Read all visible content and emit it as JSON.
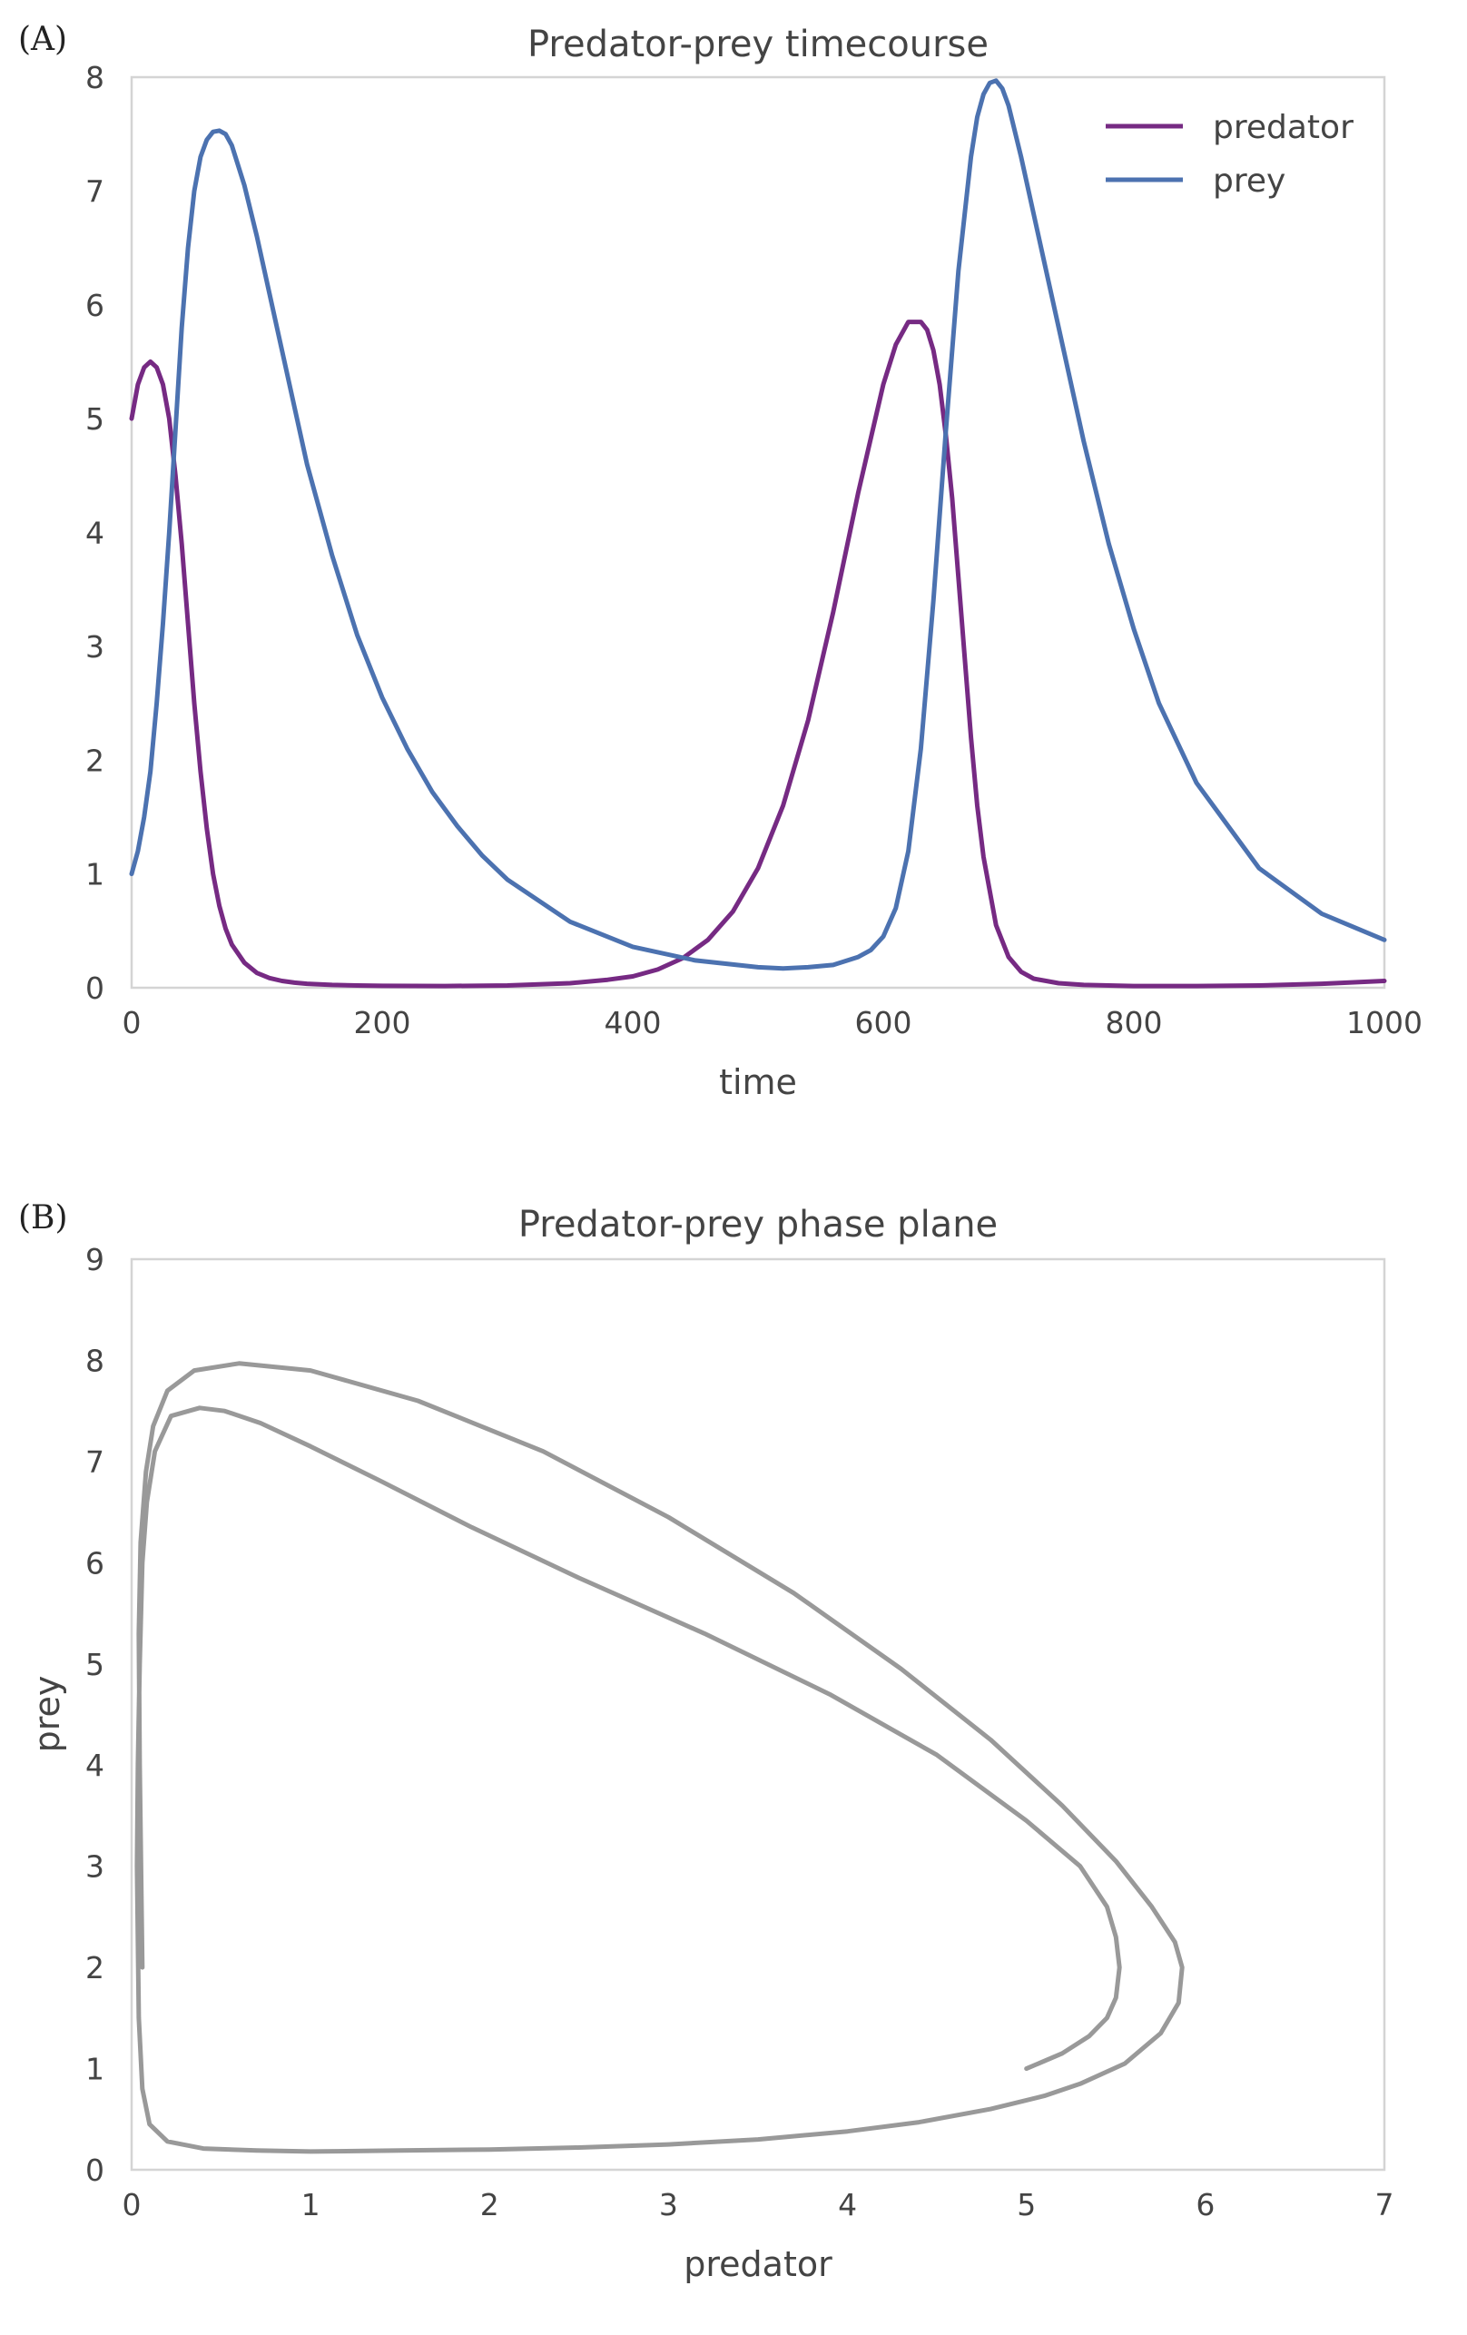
{
  "panels": [
    {
      "label": "(A)"
    },
    {
      "label": "(B)"
    }
  ],
  "chart_data": [
    {
      "type": "line",
      "title": "Predator-prey timecourse",
      "xlabel": "time",
      "ylabel": "",
      "xlim": [
        0,
        1000
      ],
      "ylim": [
        0,
        8
      ],
      "xticks": [
        0,
        200,
        400,
        600,
        800,
        1000
      ],
      "yticks": [
        0,
        1,
        2,
        3,
        4,
        5,
        6,
        7,
        8
      ],
      "grid": false,
      "legend": "top-right",
      "series": [
        {
          "name": "predator",
          "color": "#762a83",
          "x": [
            0,
            5,
            10,
            15,
            20,
            25,
            30,
            35,
            40,
            45,
            50,
            55,
            60,
            65,
            70,
            75,
            80,
            90,
            100,
            110,
            120,
            130,
            140,
            160,
            180,
            200,
            250,
            300,
            350,
            380,
            400,
            420,
            440,
            460,
            480,
            500,
            520,
            540,
            560,
            580,
            600,
            610,
            620,
            630,
            635,
            640,
            645,
            650,
            655,
            660,
            665,
            670,
            675,
            680,
            690,
            700,
            710,
            720,
            740,
            760,
            800,
            850,
            900,
            950,
            1000
          ],
          "y": [
            5.0,
            5.3,
            5.45,
            5.5,
            5.45,
            5.3,
            5.0,
            4.5,
            3.9,
            3.2,
            2.5,
            1.9,
            1.4,
            1.0,
            0.72,
            0.52,
            0.38,
            0.22,
            0.13,
            0.085,
            0.06,
            0.045,
            0.035,
            0.025,
            0.02,
            0.017,
            0.015,
            0.02,
            0.04,
            0.07,
            0.1,
            0.16,
            0.26,
            0.42,
            0.67,
            1.05,
            1.6,
            2.35,
            3.3,
            4.35,
            5.3,
            5.65,
            5.85,
            5.85,
            5.78,
            5.6,
            5.3,
            4.85,
            4.3,
            3.6,
            2.9,
            2.2,
            1.6,
            1.15,
            0.55,
            0.27,
            0.14,
            0.08,
            0.04,
            0.025,
            0.015,
            0.015,
            0.02,
            0.035,
            0.06
          ]
        },
        {
          "name": "prey",
          "color": "#4c72b0",
          "x": [
            0,
            5,
            10,
            15,
            20,
            25,
            30,
            35,
            40,
            45,
            50,
            55,
            60,
            65,
            70,
            75,
            80,
            90,
            100,
            110,
            120,
            140,
            160,
            180,
            200,
            220,
            240,
            260,
            280,
            300,
            350,
            400,
            450,
            500,
            520,
            540,
            560,
            580,
            590,
            600,
            610,
            620,
            630,
            640,
            650,
            660,
            670,
            675,
            680,
            685,
            690,
            695,
            700,
            710,
            720,
            740,
            760,
            780,
            800,
            820,
            850,
            900,
            950,
            1000
          ],
          "y": [
            1.0,
            1.2,
            1.5,
            1.9,
            2.5,
            3.2,
            4.0,
            4.9,
            5.8,
            6.5,
            7.0,
            7.3,
            7.45,
            7.52,
            7.53,
            7.5,
            7.4,
            7.05,
            6.6,
            6.1,
            5.6,
            4.6,
            3.8,
            3.1,
            2.55,
            2.1,
            1.72,
            1.42,
            1.16,
            0.95,
            0.58,
            0.36,
            0.24,
            0.18,
            0.17,
            0.18,
            0.2,
            0.27,
            0.33,
            0.45,
            0.7,
            1.2,
            2.1,
            3.4,
            4.9,
            6.3,
            7.3,
            7.65,
            7.85,
            7.95,
            7.97,
            7.9,
            7.75,
            7.3,
            6.8,
            5.8,
            4.8,
            3.9,
            3.15,
            2.5,
            1.8,
            1.05,
            0.65,
            0.42
          ]
        }
      ]
    },
    {
      "type": "line",
      "title": "Predator-prey phase plane",
      "xlabel": "predator",
      "ylabel": "prey",
      "xlim": [
        0,
        7
      ],
      "ylim": [
        0,
        9
      ],
      "xticks": [
        0,
        1,
        2,
        3,
        4,
        5,
        6,
        7
      ],
      "yticks": [
        0,
        1,
        2,
        3,
        4,
        5,
        6,
        7,
        8,
        9
      ],
      "grid": false,
      "legend": "none",
      "series": [
        {
          "color": "#999999",
          "x": [
            5.0,
            5.2,
            5.35,
            5.45,
            5.5,
            5.52,
            5.5,
            5.45,
            5.3,
            5.0,
            4.5,
            3.9,
            3.2,
            2.5,
            1.9,
            1.4,
            1.0,
            0.72,
            0.52,
            0.38,
            0.22,
            0.13,
            0.085,
            0.06,
            0.045,
            0.035,
            0.03,
            0.04,
            0.06,
            0.1,
            0.2,
            0.4,
            0.7,
            1.0,
            1.5,
            2.0,
            2.5,
            3.0,
            3.5,
            4.0,
            4.4,
            4.8,
            5.1,
            5.3,
            5.55,
            5.75,
            5.85,
            5.87,
            5.83,
            5.7,
            5.5,
            5.2,
            4.8,
            4.3,
            3.7,
            3.0,
            2.3,
            1.6,
            1.0,
            0.6,
            0.35,
            0.2,
            0.12,
            0.08,
            0.05,
            0.04,
            0.045,
            0.06
          ],
          "y": [
            1.0,
            1.15,
            1.32,
            1.5,
            1.7,
            2.0,
            2.3,
            2.6,
            3.0,
            3.45,
            4.1,
            4.7,
            5.3,
            5.85,
            6.35,
            6.8,
            7.15,
            7.38,
            7.5,
            7.53,
            7.45,
            7.1,
            6.6,
            6.0,
            5.0,
            4.0,
            3.0,
            1.5,
            0.8,
            0.45,
            0.28,
            0.21,
            0.19,
            0.18,
            0.19,
            0.2,
            0.22,
            0.25,
            0.3,
            0.38,
            0.47,
            0.6,
            0.73,
            0.85,
            1.05,
            1.35,
            1.65,
            2.0,
            2.25,
            2.6,
            3.05,
            3.6,
            4.25,
            4.95,
            5.7,
            6.45,
            7.1,
            7.6,
            7.9,
            7.97,
            7.9,
            7.7,
            7.35,
            6.9,
            6.2,
            5.3,
            4.0,
            2.0
          ]
        }
      ]
    }
  ]
}
